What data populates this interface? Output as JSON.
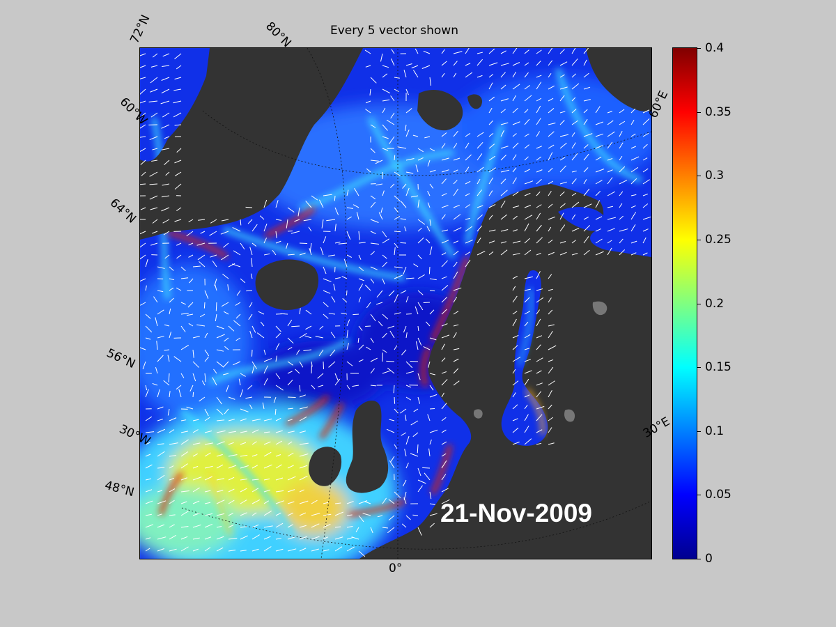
{
  "title": "Every 5 vector shown",
  "date": "21-Nov-2009",
  "lat_labels": [
    "72°N",
    "64°N",
    "56°N",
    "48°N"
  ],
  "lon_labels": [
    "80°N",
    "60°W",
    "30°W",
    "0°",
    "30°E",
    "60°E"
  ],
  "colorbar": {
    "min": 0,
    "max": 0.4,
    "ticks": [
      "0.4",
      "0.35",
      "0.3",
      "0.25",
      "0.2",
      "0.15",
      "0.1",
      "0.05",
      "0"
    ],
    "colormap": "jet"
  },
  "colors": {
    "figure_background": "#c8c8c8",
    "land": "#333333",
    "vector": "#ffffff"
  }
}
